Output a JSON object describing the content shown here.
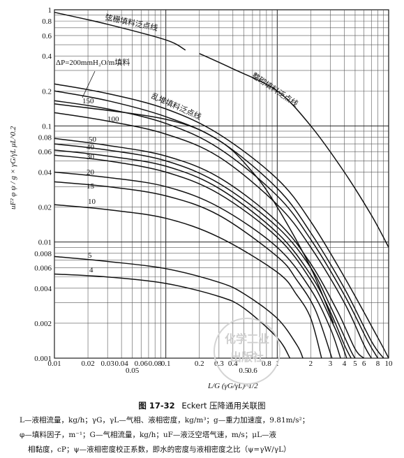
{
  "chart_data": {
    "type": "line",
    "x_scale": "log",
    "y_scale": "log",
    "xlim": [
      0.01,
      10
    ],
    "ylim": [
      0.001,
      1
    ],
    "x_ticks": [
      "0.01",
      "0.02",
      "0.03",
      "0.04",
      "0.05",
      "0.06",
      "0.08",
      "0.1",
      "0.2",
      "0.3",
      "0.4",
      "0.5",
      "0.6",
      "0.8",
      "1",
      "2",
      "3",
      "4",
      "5",
      "6",
      "8",
      "10"
    ],
    "y_ticks": [
      "1",
      "0.8",
      "0.6",
      "0.4",
      "0.2",
      "0.1",
      "0.08",
      "0.06",
      "0.04",
      "0.02",
      "0.01",
      "0.008",
      "0.006",
      "0.004",
      "0.002",
      "0.001"
    ],
    "xlabel": "L/G (γG/γL)^1/2",
    "ylabel": "uF² φ ψ / g × γG/γL μL^0.2",
    "grid": true,
    "line_labels": {
      "scattered": "弦栅填料泛点线",
      "structured": "乱堆填料泛点线",
      "ordered": "整砌填料泛点线"
    },
    "pressure_title": "ΔP=200mmH₂O/m填料",
    "series": [
      {
        "name": "弦栅填料泛点线",
        "x": [
          0.01,
          0.03,
          0.1,
          0.15
        ],
        "y": [
          0.95,
          0.75,
          0.55,
          0.45
        ]
      },
      {
        "name": "整砌填料泛点线",
        "x": [
          0.2,
          0.4,
          1,
          2,
          4,
          7,
          10
        ],
        "y": [
          0.42,
          0.31,
          0.2,
          0.1,
          0.04,
          0.017,
          0.009
        ]
      },
      {
        "name": "乱堆填料泛点线",
        "x": [
          0.01,
          0.1,
          0.3,
          0.6,
          1,
          2,
          3.2
        ],
        "y": [
          0.155,
          0.114,
          0.075,
          0.04,
          0.02,
          0.006,
          0.002
        ]
      },
      {
        "name": "200",
        "x": [
          0.01,
          0.03,
          0.1,
          0.3,
          1,
          2,
          4,
          8,
          10
        ],
        "y": [
          0.23,
          0.19,
          0.14,
          0.085,
          0.035,
          0.015,
          0.005,
          0.0015,
          0.001
        ]
      },
      {
        "name": "150",
        "x": [
          0.01,
          0.03,
          0.1,
          0.3,
          1,
          2,
          4,
          7,
          9
        ],
        "y": [
          0.2,
          0.165,
          0.12,
          0.075,
          0.029,
          0.012,
          0.004,
          0.0014,
          0.001
        ]
      },
      {
        "name": "",
        "x": [
          0.01,
          0.03,
          0.1,
          0.3,
          1,
          2,
          4,
          6.5,
          8
        ],
        "y": [
          0.165,
          0.14,
          0.105,
          0.064,
          0.025,
          0.0105,
          0.0035,
          0.0014,
          0.001
        ]
      },
      {
        "name": "100",
        "x": [
          0.01,
          0.03,
          0.1,
          0.3,
          1,
          2,
          4,
          6,
          7
        ],
        "y": [
          0.13,
          0.11,
          0.085,
          0.054,
          0.021,
          0.009,
          0.003,
          0.0013,
          0.001
        ]
      },
      {
        "name": "50",
        "x": [
          0.01,
          0.03,
          0.1,
          0.3,
          1,
          2,
          3.5,
          5,
          6
        ],
        "y": [
          0.078,
          0.068,
          0.055,
          0.036,
          0.015,
          0.0065,
          0.0025,
          0.0012,
          0.001
        ]
      },
      {
        "name": "40",
        "x": [
          0.01,
          0.03,
          0.1,
          0.3,
          1,
          2,
          3,
          4.5,
          5
        ],
        "y": [
          0.07,
          0.062,
          0.05,
          0.032,
          0.0135,
          0.006,
          0.0028,
          0.0012,
          0.001
        ]
      },
      {
        "name": "",
        "x": [
          0.01,
          0.03,
          0.1,
          0.3,
          1,
          2,
          3,
          4,
          4.6
        ],
        "y": [
          0.062,
          0.055,
          0.045,
          0.029,
          0.012,
          0.0052,
          0.0025,
          0.0013,
          0.001
        ]
      },
      {
        "name": "30",
        "x": [
          0.01,
          0.03,
          0.1,
          0.3,
          1,
          2,
          3,
          3.7,
          4.2
        ],
        "y": [
          0.056,
          0.05,
          0.04,
          0.026,
          0.011,
          0.0047,
          0.0022,
          0.0014,
          0.001
        ]
      },
      {
        "name": "20",
        "x": [
          0.01,
          0.03,
          0.1,
          0.3,
          1,
          2,
          3,
          3.7
        ],
        "y": [
          0.04,
          0.036,
          0.03,
          0.02,
          0.009,
          0.0039,
          0.0018,
          0.001
        ]
      },
      {
        "name": "15",
        "x": [
          0.01,
          0.03,
          0.1,
          0.3,
          1,
          1.5,
          2.2,
          3.1
        ],
        "y": [
          0.033,
          0.03,
          0.025,
          0.017,
          0.0075,
          0.0047,
          0.0026,
          0.001
        ]
      },
      {
        "name": "10",
        "x": [
          0.01,
          0.03,
          0.1,
          0.3,
          1,
          1.5,
          2,
          2.5
        ],
        "y": [
          0.021,
          0.019,
          0.016,
          0.011,
          0.0055,
          0.0035,
          0.0022,
          0.001
        ]
      },
      {
        "name": "5",
        "x": [
          0.01,
          0.03,
          0.1,
          0.3,
          0.5,
          1,
          1.5,
          1.7
        ],
        "y": [
          0.0075,
          0.0068,
          0.0059,
          0.0045,
          0.0036,
          0.0022,
          0.0013,
          0.001
        ]
      },
      {
        "name": "4",
        "x": [
          0.01,
          0.03,
          0.1,
          0.3,
          0.5,
          1,
          1.3
        ],
        "y": [
          0.0053,
          0.005,
          0.0044,
          0.0034,
          0.0027,
          0.0015,
          0.001
        ]
      }
    ],
    "label_positions_note": ""
  },
  "caption": {
    "figure_number": "图 17-32",
    "title": "Eckert 压降通用关联图"
  },
  "legend_lines": [
    "L—液相流量，kg/h；γG，γL—气相、液相密度，kg/m³；g—重力加速度，9.81m/s²；",
    "φ—填料因子，m⁻¹；G—气相流量，kg/h；uF—液泛空塔气速，m/s；μL—液",
    "相黏度，cP；ψ—液相密度校正系数，即水的密度与液相密度之比（ψ=γW/γL）"
  ],
  "watermark": {
    "line1": "化学工业",
    "line2": "出版社"
  }
}
